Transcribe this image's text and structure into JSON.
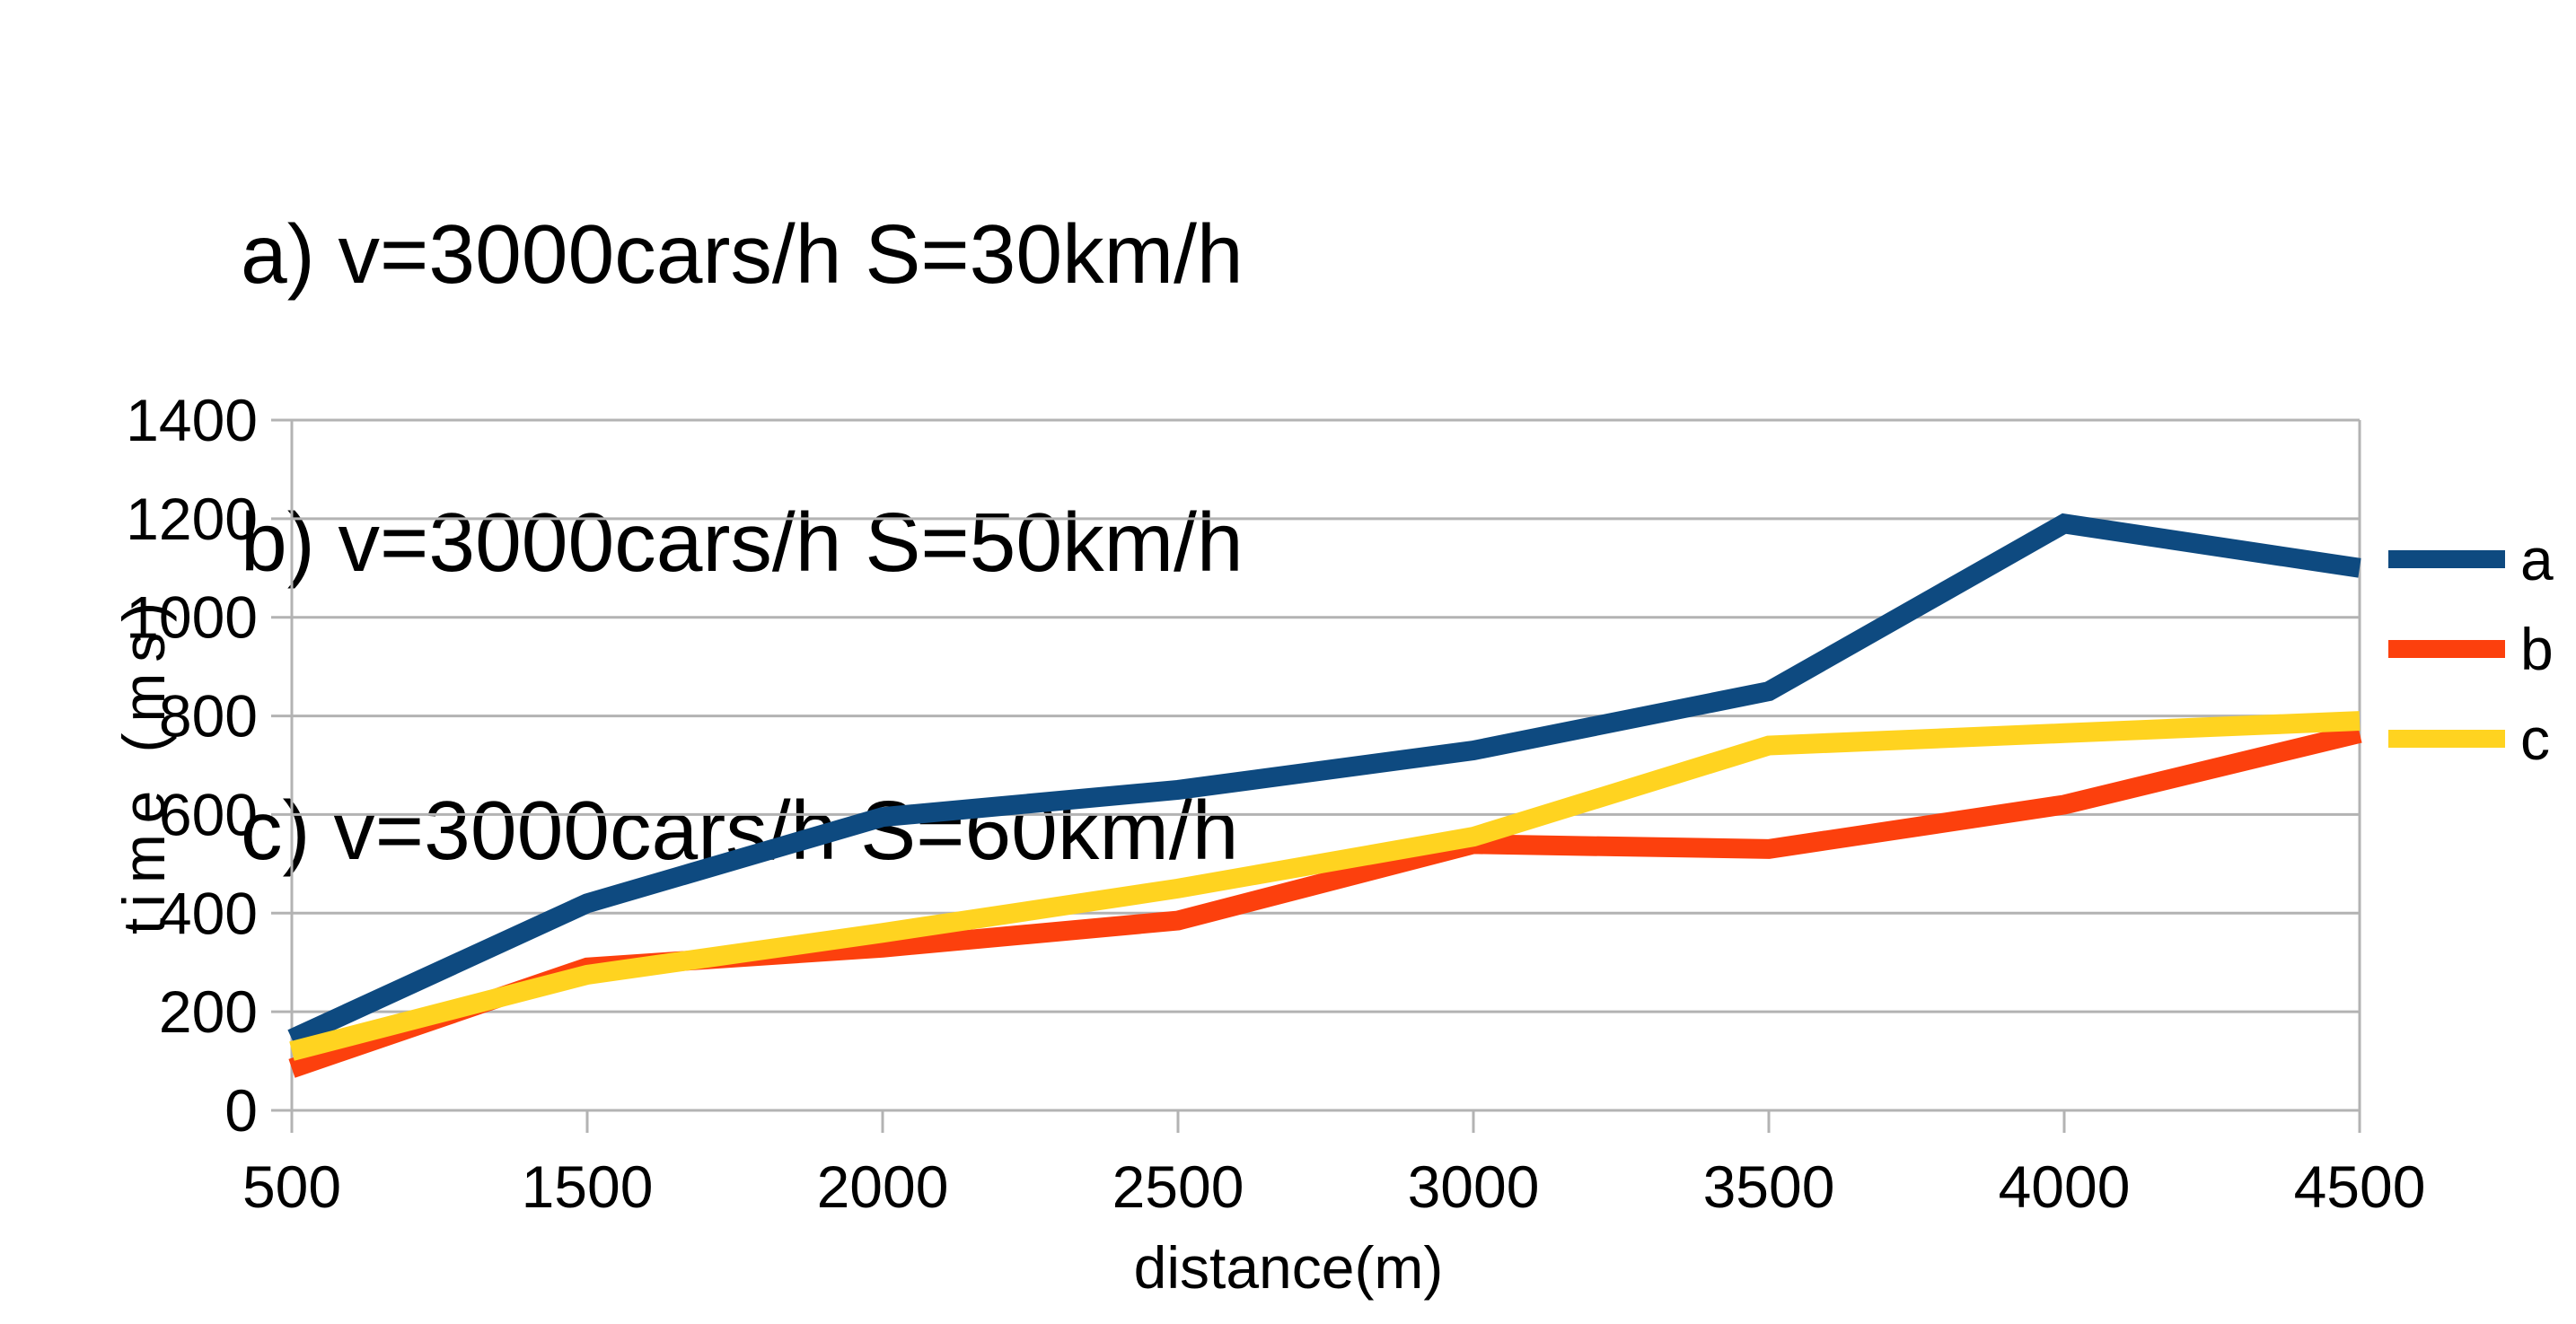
{
  "annotations": {
    "lines": [
      "a) v=3000cars/h S=30km/h",
      "b) v=3000cars/h S=50km/h",
      "c) v=3000cars/h S=60km/h"
    ]
  },
  "chart_data": {
    "type": "line",
    "title": "",
    "xlabel": "distance(m)",
    "ylabel": "time (ms)",
    "categories": [
      500,
      1500,
      2000,
      2500,
      3000,
      3500,
      4000,
      4500
    ],
    "series": [
      {
        "name": "a",
        "label": "v=3000cars/h S=30km/h",
        "color": "#0E4A80",
        "values": [
          145,
          420,
          595,
          650,
          730,
          850,
          1190,
          1100
        ]
      },
      {
        "name": "b",
        "label": "v=3000cars/h S=50km/h",
        "color": "#FC400D",
        "values": [
          85,
          290,
          330,
          385,
          540,
          530,
          620,
          765
        ]
      },
      {
        "name": "c",
        "label": "v=3000cars/h S=60km/h",
        "color": "#FFD320",
        "values": [
          120,
          275,
          360,
          450,
          555,
          740,
          765,
          790
        ]
      }
    ],
    "ylim": [
      0,
      1400
    ],
    "ytick_step": 200,
    "yticks": [
      0,
      200,
      400,
      600,
      800,
      1000,
      1200,
      1400
    ],
    "grid": true,
    "legend_position": "right",
    "legend_labels": [
      "a",
      "b",
      "c"
    ],
    "axis_color": "#B3B3B3",
    "text_color": "#000000",
    "background": "#FFFFFF"
  }
}
